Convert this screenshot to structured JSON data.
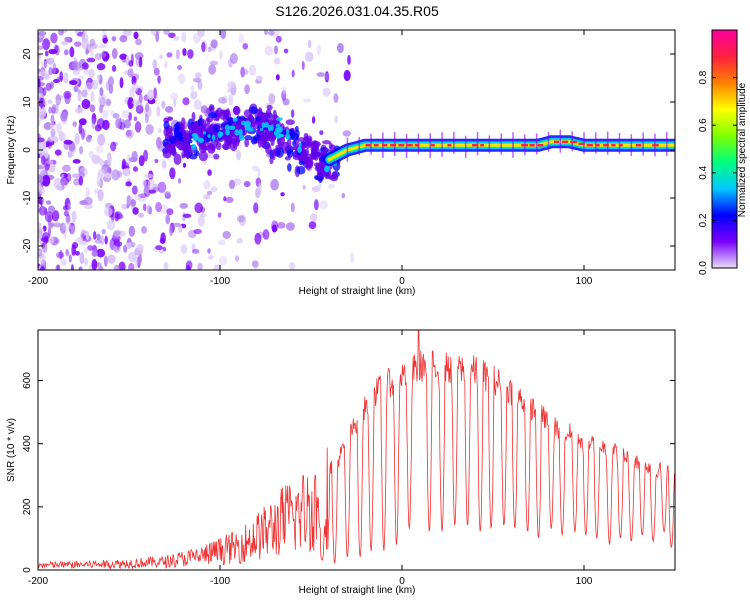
{
  "figure_title": "S126.2026.031.04.35.R05",
  "chart_data": [
    {
      "type": "heatmap",
      "title": "S126.2026.031.04.35.R05",
      "xlabel": "Height of straight line (km)",
      "ylabel": "Frequency (Hz)",
      "xlim": [
        -200,
        150
      ],
      "ylim": [
        -25,
        25
      ],
      "xticks": [
        -200,
        -100,
        0,
        100
      ],
      "yticks": [
        -20,
        -10,
        0,
        10,
        20
      ],
      "colorbar": {
        "label": "Normalized spectral amplitude",
        "range": [
          0.0,
          1.0
        ],
        "ticks": [
          "0.0",
          "0.2",
          "0.4",
          "0.6",
          "0.8"
        ],
        "tick_values": [
          0.0,
          0.2,
          0.4,
          0.6,
          0.8
        ],
        "colors": [
          "#e8dcf8",
          "#7a00ff",
          "#0000ff",
          "#00c8ff",
          "#00ff7f",
          "#7fff00",
          "#ffff00",
          "#ff8000",
          "#ff2040",
          "#ff00a0"
        ]
      },
      "signal_track": [
        {
          "x": -125,
          "y": 2
        },
        {
          "x": -110,
          "y": 3
        },
        {
          "x": -95,
          "y": 5
        },
        {
          "x": -85,
          "y": 4
        },
        {
          "x": -75,
          "y": 5
        },
        {
          "x": -65,
          "y": 3
        },
        {
          "x": -55,
          "y": 0
        },
        {
          "x": -45,
          "y": -3
        },
        {
          "x": -40,
          "y": -2
        },
        {
          "x": -35,
          "y": -1
        },
        {
          "x": -30,
          "y": 0
        },
        {
          "x": -20,
          "y": 1
        },
        {
          "x": 0,
          "y": 1
        },
        {
          "x": 40,
          "y": 1
        },
        {
          "x": 75,
          "y": 1
        },
        {
          "x": 82,
          "y": 1.7
        },
        {
          "x": 92,
          "y": 1.7
        },
        {
          "x": 100,
          "y": 1
        },
        {
          "x": 150,
          "y": 1
        }
      ]
    },
    {
      "type": "line",
      "xlabel": "Height of straight line (km)",
      "ylabel": "SNR (10 * v/v)",
      "xlim": [
        -200,
        150
      ],
      "ylim": [
        0,
        760
      ],
      "xticks": [
        -200,
        -100,
        0,
        100
      ],
      "yticks": [
        0,
        200,
        400,
        600
      ],
      "color": "#f03030",
      "envelope": [
        {
          "x": -200,
          "y": 20
        },
        {
          "x": -160,
          "y": 25
        },
        {
          "x": -130,
          "y": 35
        },
        {
          "x": -110,
          "y": 60
        },
        {
          "x": -90,
          "y": 100
        },
        {
          "x": -75,
          "y": 160
        },
        {
          "x": -65,
          "y": 210
        },
        {
          "x": -50,
          "y": 260
        },
        {
          "x": -35,
          "y": 350
        },
        {
          "x": -25,
          "y": 470
        },
        {
          "x": -15,
          "y": 560
        },
        {
          "x": -5,
          "y": 600
        },
        {
          "x": 5,
          "y": 630
        },
        {
          "x": 12,
          "y": 650
        },
        {
          "x": 25,
          "y": 640
        },
        {
          "x": 40,
          "y": 630
        },
        {
          "x": 55,
          "y": 590
        },
        {
          "x": 70,
          "y": 520
        },
        {
          "x": 85,
          "y": 450
        },
        {
          "x": 100,
          "y": 410
        },
        {
          "x": 115,
          "y": 380
        },
        {
          "x": 130,
          "y": 340
        },
        {
          "x": 150,
          "y": 300
        }
      ],
      "peak": {
        "x": 9,
        "y": 760
      },
      "notches": [
        {
          "x": -44,
          "y": 30
        },
        {
          "x": -37,
          "y": 20
        },
        {
          "x": -30,
          "y": 40
        },
        {
          "x": -23,
          "y": 40
        },
        {
          "x": -17,
          "y": 60
        },
        {
          "x": -10,
          "y": 60
        },
        {
          "x": -3,
          "y": 80
        },
        {
          "x": 4,
          "y": 130
        },
        {
          "x": 15,
          "y": 120
        },
        {
          "x": 22,
          "y": 120
        },
        {
          "x": 29,
          "y": 140
        },
        {
          "x": 36,
          "y": 140
        },
        {
          "x": 43,
          "y": 120
        },
        {
          "x": 49,
          "y": 130
        },
        {
          "x": 56,
          "y": 140
        },
        {
          "x": 62,
          "y": 130
        },
        {
          "x": 69,
          "y": 120
        },
        {
          "x": 75,
          "y": 100
        },
        {
          "x": 82,
          "y": 130
        },
        {
          "x": 88,
          "y": 110
        },
        {
          "x": 95,
          "y": 120
        },
        {
          "x": 101,
          "y": 110
        },
        {
          "x": 107,
          "y": 100
        },
        {
          "x": 114,
          "y": 80
        },
        {
          "x": 120,
          "y": 100
        },
        {
          "x": 126,
          "y": 90
        },
        {
          "x": 132,
          "y": 110
        },
        {
          "x": 138,
          "y": 90
        },
        {
          "x": 144,
          "y": 120
        },
        {
          "x": 148,
          "y": 70
        }
      ]
    }
  ]
}
